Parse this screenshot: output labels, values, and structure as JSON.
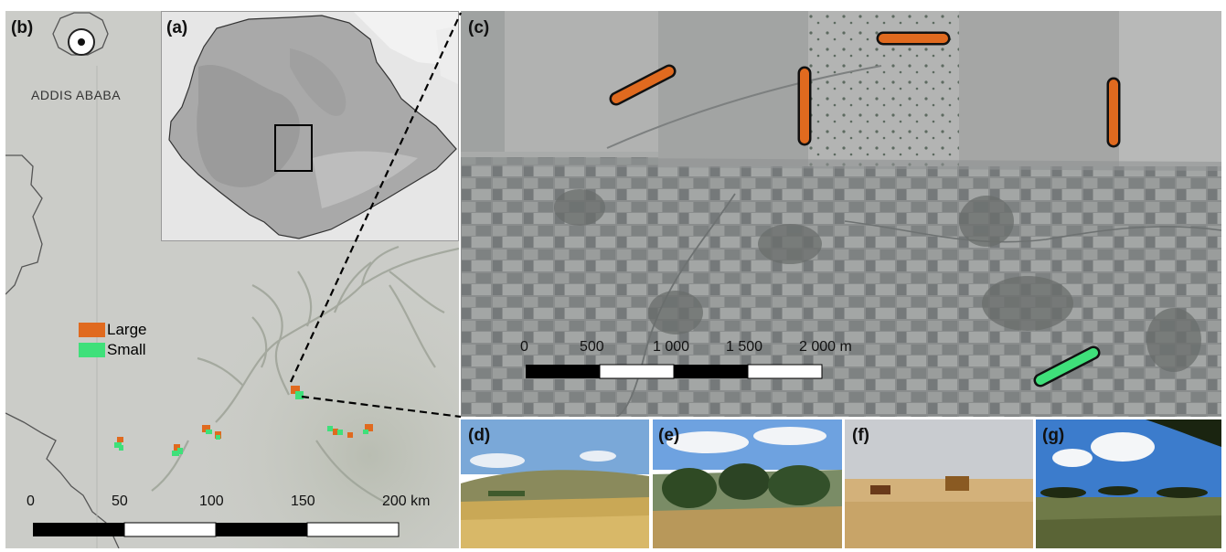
{
  "panels": {
    "a": "(a)",
    "b": "(b)",
    "c": "(c)",
    "d": "(d)",
    "e": "(e)",
    "f": "(f)",
    "g": "(g)"
  },
  "map_b": {
    "city_label": "ADDIS ABABA",
    "legend": [
      {
        "label": "Large",
        "color": "#e06a1f"
      },
      {
        "label": "Small",
        "color": "#3fe07a"
      }
    ],
    "scale_ticks": [
      "0",
      "50",
      "100",
      "150",
      "200 km"
    ]
  },
  "satellite_c": {
    "scale_ticks": [
      "0",
      "500",
      "1 000",
      "1 500",
      "2 000 m"
    ]
  },
  "colors": {
    "large": "#e06a1f",
    "small": "#3fe07a",
    "scale_black": "#000000",
    "scale_white": "#ffffff"
  }
}
